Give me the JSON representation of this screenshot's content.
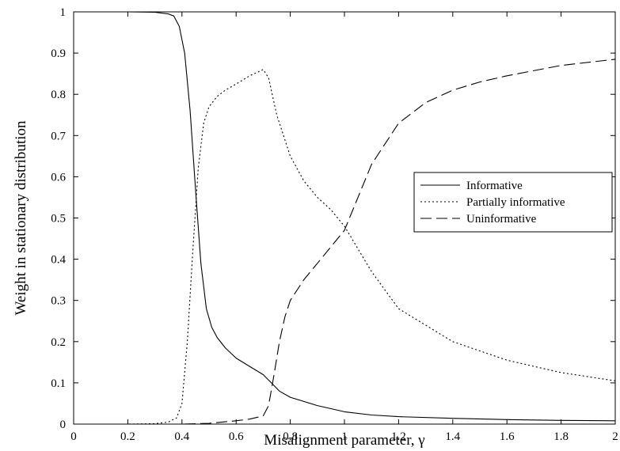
{
  "chart_data": {
    "type": "line",
    "title": "",
    "xlabel": "Misalignment parameter, γ",
    "ylabel": "Weight in stationary distribution",
    "xlim": [
      0,
      2
    ],
    "ylim": [
      0,
      1
    ],
    "xticks": [
      "0",
      "0.2",
      "0.4",
      "0.6",
      "0.8",
      "1",
      "1.2",
      "1.4",
      "1.6",
      "1.8",
      "2"
    ],
    "yticks": [
      "0",
      "0.1",
      "0.2",
      "0.3",
      "0.4",
      "0.5",
      "0.6",
      "0.7",
      "0.8",
      "0.9",
      "1"
    ],
    "grid": false,
    "legend_position": "center-right",
    "series": [
      {
        "name": "Informative",
        "style": "solid",
        "color": "#000000",
        "x": [
          0,
          0.1,
          0.2,
          0.3,
          0.35,
          0.37,
          0.39,
          0.41,
          0.43,
          0.45,
          0.47,
          0.49,
          0.51,
          0.53,
          0.56,
          0.6,
          0.65,
          0.7,
          0.73,
          0.76,
          0.8,
          0.9,
          1.0,
          1.1,
          1.2,
          1.4,
          1.6,
          1.8,
          2.0
        ],
        "y": [
          1.0,
          1.0,
          1.0,
          0.999,
          0.995,
          0.99,
          0.965,
          0.9,
          0.76,
          0.57,
          0.39,
          0.28,
          0.235,
          0.21,
          0.185,
          0.16,
          0.14,
          0.12,
          0.1,
          0.08,
          0.065,
          0.045,
          0.03,
          0.022,
          0.018,
          0.014,
          0.011,
          0.009,
          0.008
        ]
      },
      {
        "name": "Partially informative",
        "style": "dotted",
        "color": "#000000",
        "x": [
          0,
          0.2,
          0.3,
          0.35,
          0.38,
          0.4,
          0.42,
          0.44,
          0.46,
          0.48,
          0.5,
          0.53,
          0.56,
          0.6,
          0.65,
          0.7,
          0.72,
          0.75,
          0.8,
          0.85,
          0.9,
          0.95,
          1.0,
          1.1,
          1.2,
          1.4,
          1.6,
          1.8,
          2.0
        ],
        "y": [
          0,
          0,
          0.001,
          0.005,
          0.015,
          0.05,
          0.2,
          0.42,
          0.62,
          0.73,
          0.77,
          0.795,
          0.81,
          0.825,
          0.845,
          0.86,
          0.84,
          0.75,
          0.65,
          0.59,
          0.55,
          0.52,
          0.48,
          0.37,
          0.28,
          0.2,
          0.155,
          0.125,
          0.105
        ]
      },
      {
        "name": "Uninformative",
        "style": "dashed",
        "color": "#000000",
        "x": [
          0,
          0.4,
          0.5,
          0.6,
          0.65,
          0.7,
          0.72,
          0.74,
          0.76,
          0.78,
          0.8,
          0.85,
          0.9,
          0.95,
          1.0,
          1.05,
          1.1,
          1.2,
          1.3,
          1.4,
          1.5,
          1.6,
          1.8,
          2.0
        ],
        "y": [
          0,
          0,
          0.002,
          0.008,
          0.012,
          0.02,
          0.045,
          0.12,
          0.2,
          0.26,
          0.3,
          0.35,
          0.39,
          0.43,
          0.47,
          0.55,
          0.63,
          0.73,
          0.78,
          0.81,
          0.83,
          0.845,
          0.87,
          0.885
        ]
      }
    ]
  }
}
